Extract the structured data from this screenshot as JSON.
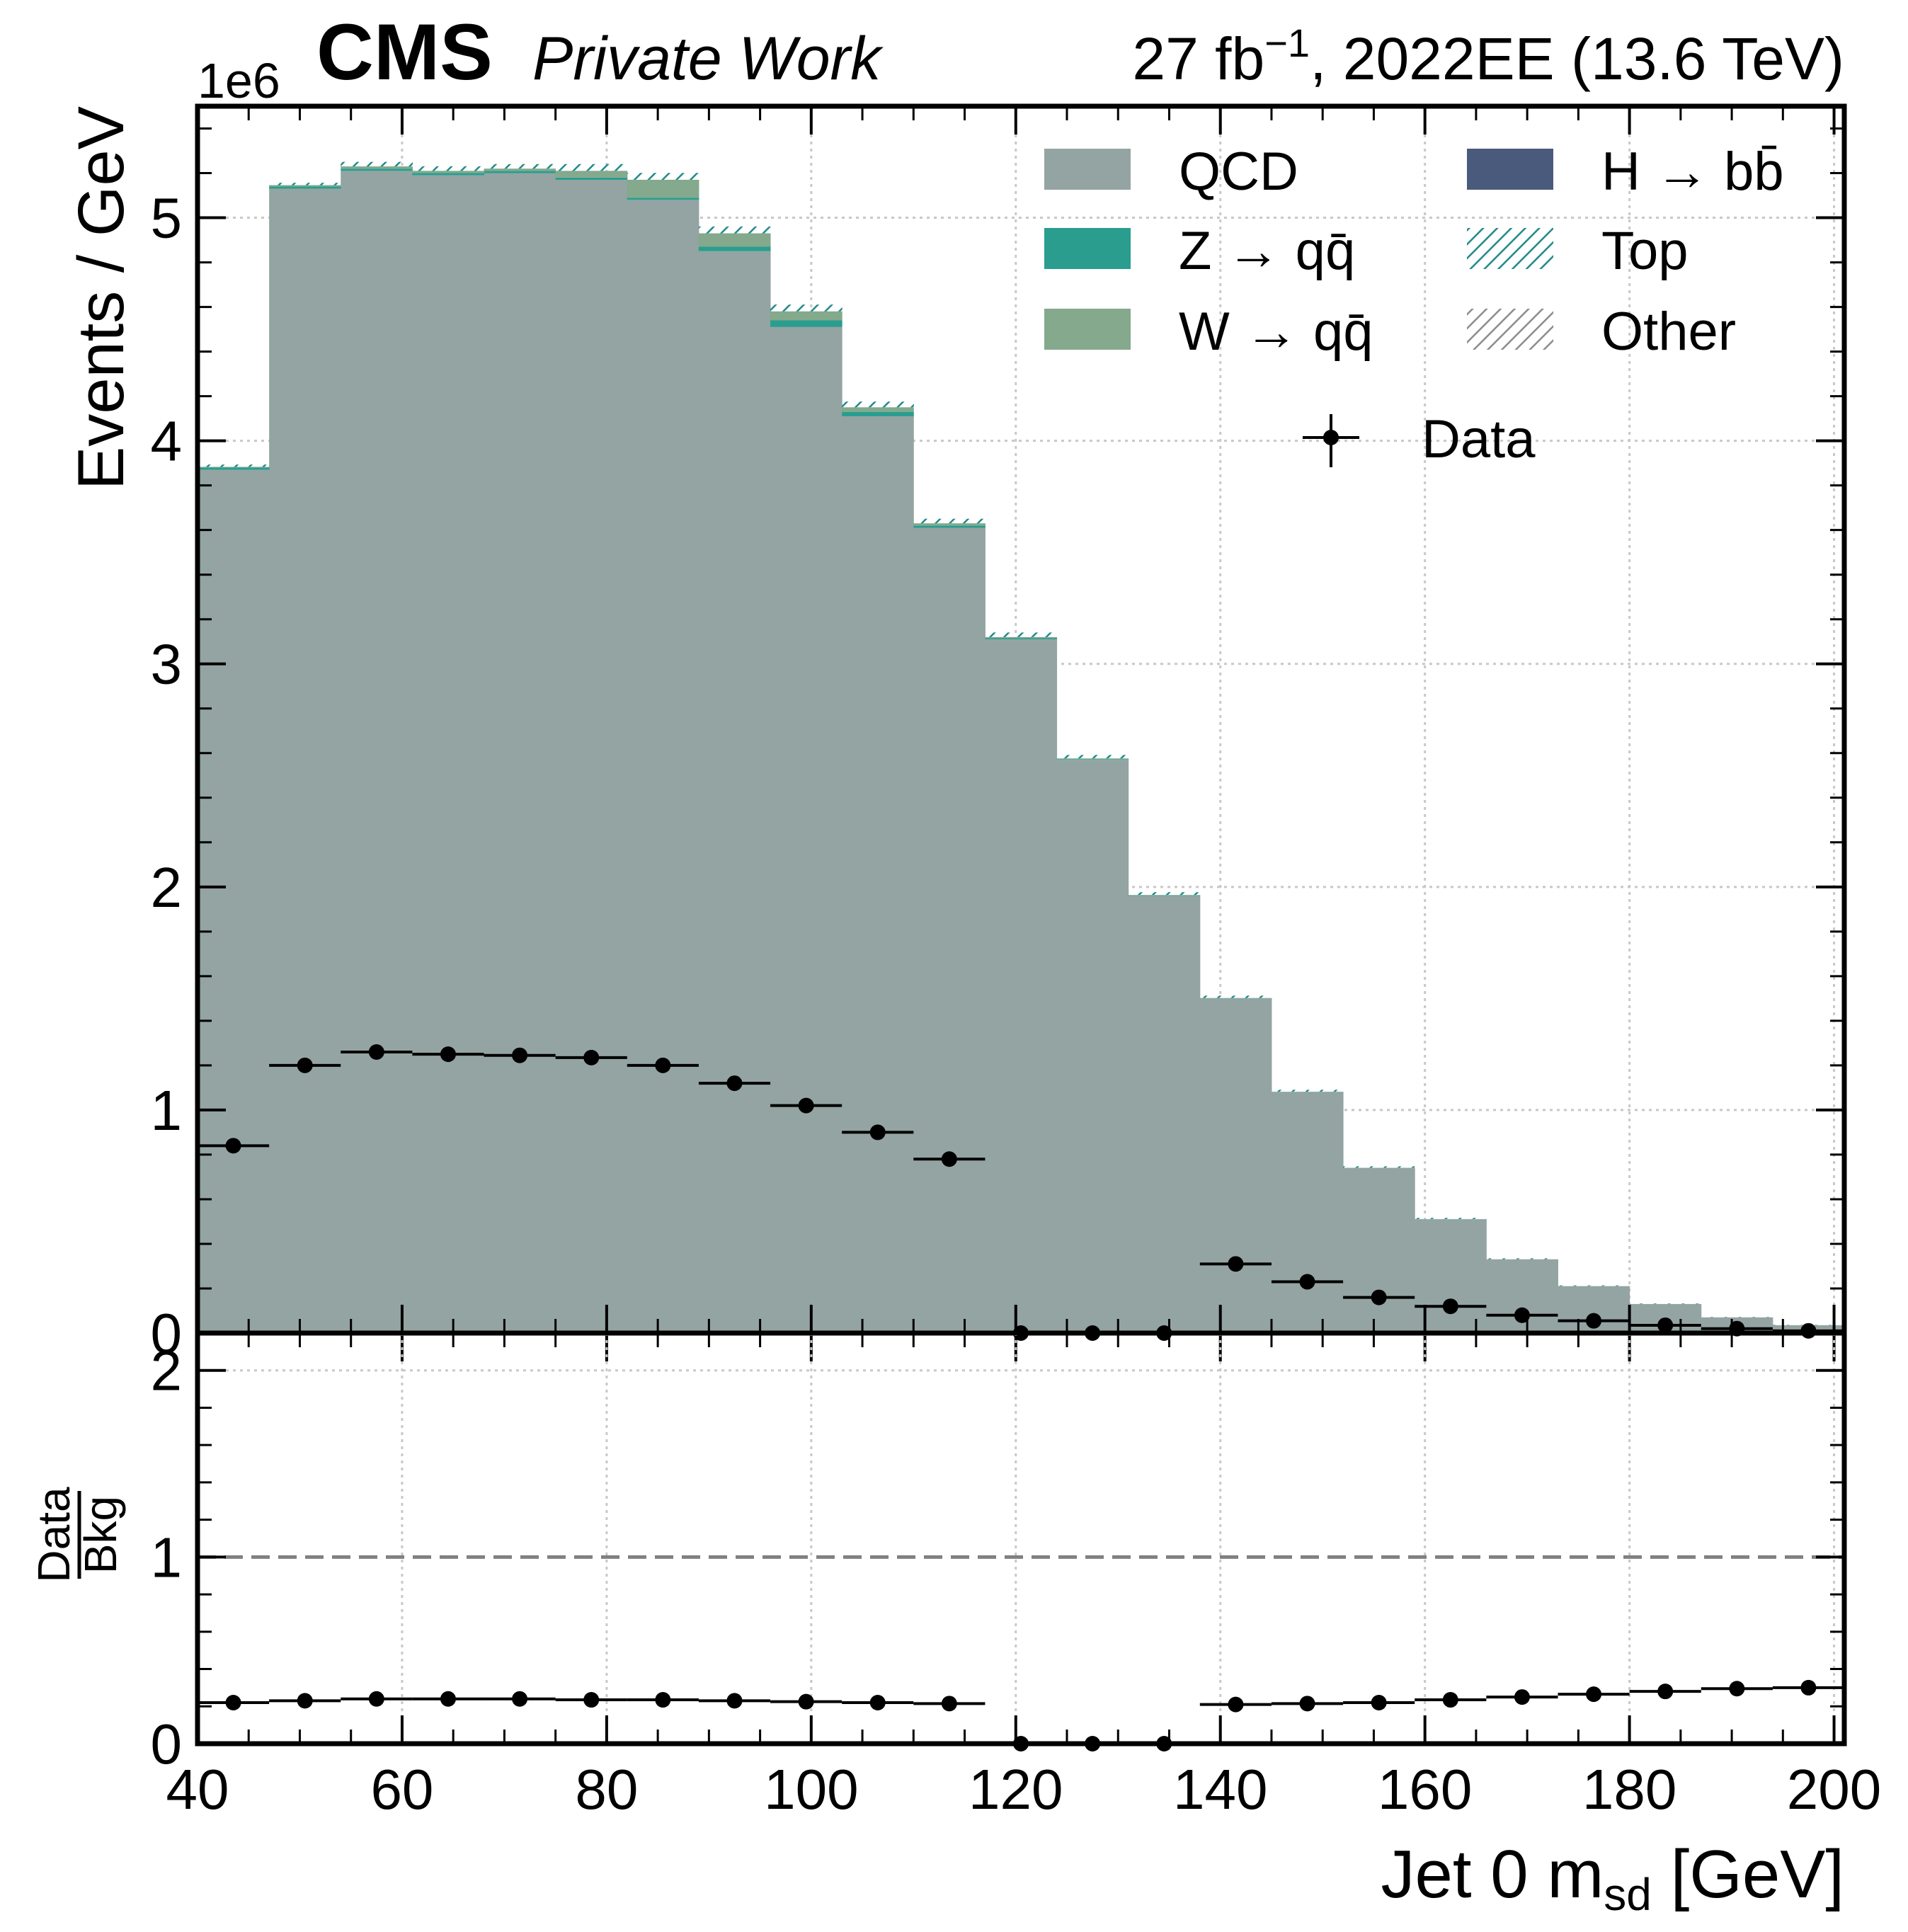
{
  "header": {
    "exponent": "1e6",
    "experiment": "CMS",
    "status": "Private Work",
    "lumi_value": "27",
    "lumi_unit": "fb",
    "lumi_power": "−1",
    "lumi_tail": ", 2022EE (13.6 TeV)"
  },
  "colors": {
    "qcd": "#94a4a2",
    "zqq": "#2a9d8f",
    "wqq": "#84a98c",
    "hbb": "#4a5a7c",
    "top": "#1f8a8a",
    "other": "#8c8c8c",
    "data": "#000000",
    "ratio_line": "#808080",
    "grid": "#c8c8c8"
  },
  "chart_data": [
    {
      "type": "histogram",
      "panel": "main",
      "ylabel": "Events / GeV",
      "y_exponent": "1e6",
      "xlim": [
        40,
        201
      ],
      "ylim": [
        0,
        5.5
      ],
      "yticks": [
        "0",
        "1",
        "2",
        "3",
        "4",
        "5"
      ],
      "grid": true,
      "legend_position": "top-right",
      "bin_edges": [
        40,
        47,
        54,
        61,
        68,
        75,
        82,
        89,
        96,
        103,
        110,
        117,
        124,
        131,
        138,
        145,
        152,
        159,
        166,
        173,
        180,
        187,
        194,
        201
      ],
      "stacked_series": [
        {
          "name": "QCD",
          "label_parts": [
            "QCD"
          ],
          "color_key": "qcd",
          "style": "fill",
          "values": [
            3.87,
            5.13,
            5.21,
            5.19,
            5.2,
            5.17,
            5.08,
            4.85,
            4.51,
            4.11,
            3.61,
            3.11,
            2.57,
            1.96,
            1.5,
            1.08,
            0.74,
            0.51,
            0.33,
            0.21,
            0.13,
            0.07,
            0.035
          ]
        },
        {
          "name": "Z → qq̄",
          "label_parts": [
            "Z ",
            "→",
            " q",
            "q̄"
          ],
          "color_key": "zqq",
          "style": "fill",
          "values": [
            0.01,
            0.01,
            0.01,
            0.01,
            0.01,
            0.01,
            0.01,
            0.02,
            0.03,
            0.02,
            0.01,
            0.005,
            0.003,
            0.002,
            0.001,
            0.001,
            0.0005,
            0.0005,
            0.0003,
            0.0002,
            0.0001,
            0.0001,
            0.0001
          ]
        },
        {
          "name": "W → qq̄",
          "label_parts": [
            "W ",
            "→",
            " q",
            "q̄"
          ],
          "color_key": "wqq",
          "style": "fill",
          "values": [
            0.003,
            0.006,
            0.01,
            0.01,
            0.01,
            0.03,
            0.08,
            0.06,
            0.04,
            0.02,
            0.01,
            0.005,
            0.003,
            0.002,
            0.001,
            0.001,
            0.0005,
            0.0005,
            0.0003,
            0.0002,
            0.0001,
            0.0001,
            0.0001
          ]
        },
        {
          "name": "H → bb̄",
          "label_parts": [
            "H ",
            "→",
            " b",
            "b̄"
          ],
          "color_key": "hbb",
          "style": "fill",
          "values": [
            0.0001,
            0.0001,
            0.0001,
            0.0001,
            0.0001,
            0.0001,
            0.0001,
            0.0001,
            0.0001,
            0.0001,
            0.0001,
            0.0001,
            0.0001,
            0.0001,
            0.0001,
            0.0001,
            0.0001,
            0.0001,
            0.0001,
            0.0001,
            0.0001,
            0.0001,
            0.0001
          ]
        },
        {
          "name": "Top",
          "label_parts": [
            "Top"
          ],
          "color_key": "top",
          "style": "hatch",
          "values": [
            0.01,
            0.01,
            0.02,
            0.02,
            0.02,
            0.03,
            0.03,
            0.03,
            0.03,
            0.025,
            0.02,
            0.02,
            0.015,
            0.012,
            0.01,
            0.008,
            0.006,
            0.005,
            0.004,
            0.003,
            0.002,
            0.0015,
            0.001
          ]
        },
        {
          "name": "Other",
          "label_parts": [
            "Other"
          ],
          "color_key": "other",
          "style": "hatch",
          "values": [
            0.001,
            0.001,
            0.001,
            0.001,
            0.001,
            0.001,
            0.001,
            0.001,
            0.001,
            0.001,
            0.001,
            0.001,
            0.001,
            0.001,
            0.001,
            0.001,
            0.001,
            0.001,
            0.001,
            0.001,
            0.001,
            0.001,
            0.001
          ]
        }
      ],
      "data_series": {
        "name": "Data",
        "values": [
          0.84,
          1.2,
          1.26,
          1.25,
          1.245,
          1.235,
          1.2,
          1.12,
          1.02,
          0.9,
          0.78,
          0,
          0,
          0,
          0.31,
          0.23,
          0.16,
          0.12,
          0.08,
          0.055,
          0.035,
          0.02,
          0.01
        ]
      }
    },
    {
      "type": "scatter",
      "panel": "ratio",
      "ylabel_num": "Data",
      "ylabel_den": "Bkg",
      "xlabel_main": "Jet 0 m",
      "xlabel_sub": "sd",
      "xlabel_tail": " [GeV]",
      "xlim": [
        40,
        201
      ],
      "ylim": [
        0,
        2.2
      ],
      "xticks": [
        "40",
        "60",
        "80",
        "100",
        "120",
        "140",
        "160",
        "180",
        "200"
      ],
      "yticks": [
        "0",
        "1",
        "2"
      ],
      "reference_line": 1,
      "grid": true,
      "values": [
        0.22,
        0.23,
        0.24,
        0.24,
        0.24,
        0.235,
        0.235,
        0.23,
        0.225,
        0.22,
        0.215,
        0,
        0,
        0,
        0.21,
        0.215,
        0.22,
        0.235,
        0.25,
        0.265,
        0.28,
        0.295,
        0.3
      ]
    }
  ]
}
